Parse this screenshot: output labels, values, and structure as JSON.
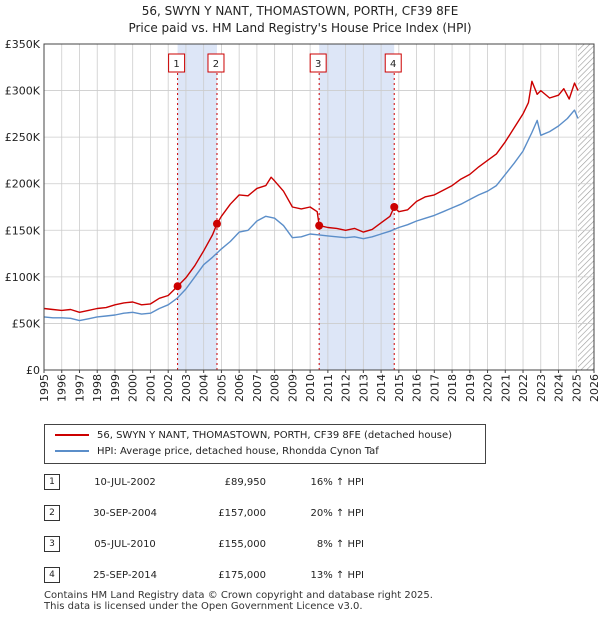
{
  "chart_data": {
    "type": "line",
    "title": "56, SWYN Y NANT, THOMASTOWN, PORTH, CF39 8FE",
    "subtitle": "Price paid vs. HM Land Registry's House Price Index (HPI)",
    "xlabel": "",
    "ylabel": "",
    "xlim": [
      1995,
      2026
    ],
    "ylim": [
      0,
      350000
    ],
    "yticks": [
      0,
      50000,
      100000,
      150000,
      200000,
      250000,
      300000,
      350000
    ],
    "ytick_labels": [
      "£0",
      "£50K",
      "£100K",
      "£150K",
      "£200K",
      "£250K",
      "£300K",
      "£350K"
    ],
    "xticks": [
      1995,
      1996,
      1997,
      1998,
      1999,
      2000,
      2001,
      2002,
      2003,
      2004,
      2005,
      2006,
      2007,
      2008,
      2009,
      2010,
      2011,
      2012,
      2013,
      2014,
      2015,
      2016,
      2017,
      2018,
      2019,
      2020,
      2021,
      2022,
      2023,
      2024,
      2025,
      2026
    ],
    "grid": true,
    "series": [
      {
        "name": "56, SWYN Y NANT, THOMASTOWN, PORTH, CF39 8FE (detached house)",
        "color": "#cc0000",
        "x": [
          1995.0,
          1995.5,
          1996.0,
          1996.5,
          1997.0,
          1997.5,
          1998.0,
          1998.5,
          1999.0,
          1999.5,
          2000.0,
          2000.5,
          2001.0,
          2001.5,
          2002.0,
          2002.53,
          2003.0,
          2003.5,
          2004.0,
          2004.5,
          2004.75,
          2005.0,
          2005.5,
          2006.0,
          2006.5,
          2007.0,
          2007.5,
          2007.8,
          2008.0,
          2008.5,
          2009.0,
          2009.5,
          2010.0,
          2010.4,
          2010.51,
          2011.0,
          2011.5,
          2012.0,
          2012.5,
          2013.0,
          2013.5,
          2014.0,
          2014.5,
          2014.74,
          2015.0,
          2015.5,
          2016.0,
          2016.5,
          2017.0,
          2017.5,
          2018.0,
          2018.5,
          2019.0,
          2019.5,
          2020.0,
          2020.5,
          2021.0,
          2021.5,
          2022.0,
          2022.3,
          2022.5,
          2022.8,
          2023.0,
          2023.5,
          2024.0,
          2024.3,
          2024.6,
          2024.9,
          2025.1
        ],
        "y": [
          66000,
          65000,
          64000,
          65000,
          62000,
          64000,
          66000,
          67000,
          70000,
          72000,
          73000,
          70000,
          71000,
          77000,
          80000,
          89950,
          99000,
          112000,
          128000,
          145000,
          157000,
          165000,
          178000,
          188000,
          187000,
          195000,
          198000,
          207000,
          203000,
          192000,
          175000,
          173000,
          175000,
          170000,
          155000,
          153000,
          152000,
          150000,
          152000,
          148000,
          151000,
          158000,
          165000,
          175000,
          170000,
          172000,
          181000,
          186000,
          188000,
          193000,
          198000,
          205000,
          210000,
          218000,
          225000,
          232000,
          245000,
          260000,
          275000,
          287000,
          310000,
          296000,
          300000,
          292000,
          295000,
          302000,
          291000,
          308000,
          300000
        ]
      },
      {
        "name": "HPI: Average price, detached house, Rhondda Cynon Taf",
        "color": "#5b8ec9",
        "x": [
          1995.0,
          1995.5,
          1996.0,
          1996.5,
          1997.0,
          1997.5,
          1998.0,
          1998.5,
          1999.0,
          1999.5,
          2000.0,
          2000.5,
          2001.0,
          2001.5,
          2002.0,
          2002.5,
          2003.0,
          2003.5,
          2004.0,
          2004.5,
          2005.0,
          2005.5,
          2006.0,
          2006.5,
          2007.0,
          2007.5,
          2008.0,
          2008.5,
          2009.0,
          2009.5,
          2010.0,
          2010.5,
          2011.0,
          2011.5,
          2012.0,
          2012.5,
          2013.0,
          2013.5,
          2014.0,
          2014.5,
          2015.0,
          2015.5,
          2016.0,
          2016.5,
          2017.0,
          2017.5,
          2018.0,
          2018.5,
          2019.0,
          2019.5,
          2020.0,
          2020.5,
          2021.0,
          2021.5,
          2022.0,
          2022.5,
          2022.8,
          2023.0,
          2023.5,
          2024.0,
          2024.5,
          2024.9,
          2025.1
        ],
        "y": [
          57000,
          56000,
          56000,
          55500,
          53000,
          55000,
          57000,
          58000,
          59000,
          61000,
          62000,
          60000,
          61000,
          66000,
          70000,
          77000,
          87000,
          100000,
          113000,
          121000,
          130000,
          138000,
          148000,
          150000,
          160000,
          165000,
          163000,
          155000,
          142000,
          143000,
          146000,
          145000,
          144000,
          143000,
          142000,
          143000,
          141000,
          143000,
          146000,
          149000,
          153000,
          156000,
          160000,
          163000,
          166000,
          170000,
          174000,
          178000,
          183000,
          188000,
          192000,
          198000,
          210000,
          222000,
          235000,
          255000,
          268000,
          252000,
          256000,
          262000,
          270000,
          279000,
          270000
        ]
      }
    ],
    "sales": [
      {
        "num": "1",
        "x": 2002.53,
        "y": 89950
      },
      {
        "num": "2",
        "x": 2004.75,
        "y": 157000
      },
      {
        "num": "3",
        "x": 2010.51,
        "y": 155000
      },
      {
        "num": "4",
        "x": 2014.74,
        "y": 175000
      }
    ],
    "shaded_ranges": [
      [
        2002.53,
        2004.75
      ],
      [
        2010.51,
        2014.74
      ]
    ],
    "hatched_from": 2025.1
  },
  "legend": {
    "property": "56, SWYN Y NANT, THOMASTOWN, PORTH, CF39 8FE (detached house)",
    "hpi": "HPI: Average price, detached house, Rhondda Cynon Taf"
  },
  "sales_table": [
    {
      "num": "1",
      "date": "10-JUL-2002",
      "price": "£89,950",
      "hpi": "16% ↑ HPI"
    },
    {
      "num": "2",
      "date": "30-SEP-2004",
      "price": "£157,000",
      "hpi": "20% ↑ HPI"
    },
    {
      "num": "3",
      "date": "05-JUL-2010",
      "price": "£155,000",
      "hpi": "8% ↑ HPI"
    },
    {
      "num": "4",
      "date": "25-SEP-2014",
      "price": "£175,000",
      "hpi": "13% ↑ HPI"
    }
  ],
  "footer": {
    "line1": "Contains HM Land Registry data © Crown copyright and database right 2025.",
    "line2": "This data is licensed under the Open Government Licence v3.0."
  },
  "colors": {
    "property": "#cc0000",
    "hpi": "#5b8ec9",
    "shade": "#dde6f7",
    "grid": "#cccccc"
  }
}
